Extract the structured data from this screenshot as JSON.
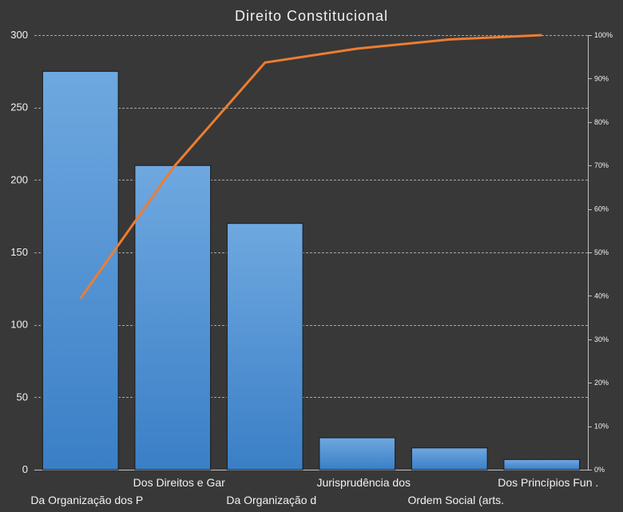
{
  "chart_data": {
    "type": "bar",
    "title": "Direito Constitucional",
    "categories": [
      "Da Organização dos P",
      "Dos Direitos e Gar",
      "Da Organização d",
      "Jurisprudência dos",
      "Ordem Social (arts.",
      "Dos Princípios Fun ."
    ],
    "values": [
      275,
      210,
      170,
      22,
      15,
      7
    ],
    "cumulative_percent": [
      39.4,
      69.4,
      93.7,
      96.9,
      99.0,
      100
    ],
    "ylim": [
      0,
      300
    ],
    "yticks": [
      "0",
      "50",
      "100",
      "150",
      "200",
      "250",
      "300"
    ],
    "y2lim": [
      0,
      100
    ],
    "y2ticks": [
      "0%",
      "10%",
      "20%",
      "30%",
      "40%",
      "50%",
      "60%",
      "70%",
      "80%",
      "90%",
      "100%"
    ],
    "grid": true,
    "legend": "none",
    "colors": {
      "bar_top": "#6fa8e0",
      "bar_bottom": "#3a7fc6",
      "line": "#ed7d31",
      "background": "#383838",
      "text": "#f2f2f2"
    }
  }
}
